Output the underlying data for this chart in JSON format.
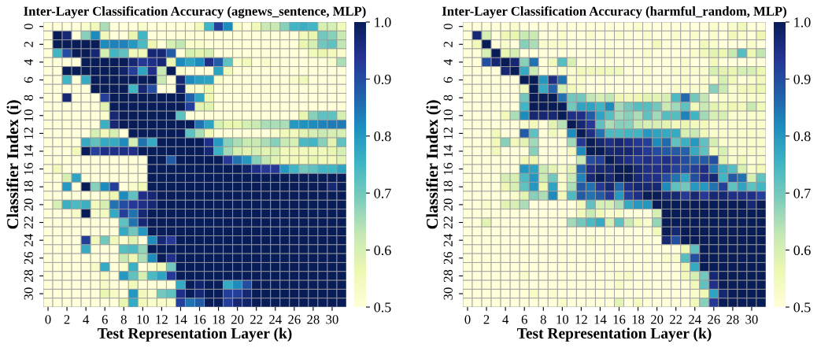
{
  "chart_data": [
    {
      "type": "heatmap",
      "title": "Inter-Layer Classification Accuracy (agnews_sentence, MLP)",
      "xlabel": "Test Representation Layer (k)",
      "ylabel": "Classifier Index (i)",
      "categories": [
        "0",
        null,
        "2",
        null,
        "4",
        null,
        "6",
        null,
        "8",
        null,
        "10",
        null,
        "12",
        null,
        "14",
        null,
        "16",
        null,
        "18",
        null,
        "20",
        null,
        "22",
        null,
        "24",
        null,
        "26",
        null,
        "28",
        null,
        "30",
        null
      ],
      "y_categories": [
        "0",
        null,
        "2",
        null,
        "4",
        null,
        "6",
        null,
        "8",
        null,
        "10",
        null,
        "12",
        null,
        "14",
        null,
        "16",
        null,
        "18",
        null,
        "20",
        null,
        "22",
        null,
        "24",
        null,
        "26",
        null,
        "28",
        null,
        "30",
        null
      ],
      "clim": [
        0.5,
        1.0
      ],
      "cticks": [
        0.5,
        0.6,
        0.7,
        0.8,
        0.9,
        {
          "value": 1,
          "label": "1.0"
        }
      ],
      "cells": [
        [
          0.5,
          0.5,
          0.5,
          0.5,
          0.52,
          0.55,
          0.65,
          0.5,
          0.5,
          0.5,
          0.52,
          0.5,
          0.5,
          0.5,
          0.5,
          0.5,
          0.55,
          0.75,
          0.92,
          0.82,
          0.52,
          0.5,
          0.55,
          0.62,
          0.62,
          0.68,
          0.75,
          0.76,
          0.75,
          0.6,
          0.6,
          0.55
        ],
        [
          0.5,
          1.0,
          0.97,
          0.5,
          0.68,
          0.82,
          0.55,
          0.5,
          0.5,
          0.57,
          0.75,
          0.5,
          0.5,
          0.5,
          0.5,
          0.5,
          0.5,
          0.5,
          0.5,
          0.5,
          0.5,
          0.5,
          0.5,
          0.5,
          0.5,
          0.5,
          0.5,
          0.55,
          0.57,
          0.7,
          0.68,
          0.62
        ],
        [
          0.5,
          1.0,
          1.0,
          1.0,
          1.0,
          1.0,
          0.82,
          0.83,
          0.83,
          0.8,
          0.74,
          0.56,
          0.5,
          0.6,
          0.63,
          0.52,
          0.52,
          0.5,
          0.5,
          0.5,
          0.5,
          0.5,
          0.5,
          0.5,
          0.5,
          0.5,
          0.5,
          0.57,
          0.6,
          0.7,
          0.72,
          0.63
        ],
        [
          0.5,
          0.75,
          0.9,
          1.0,
          1.0,
          0.97,
          0.6,
          0.75,
          0.72,
          0.55,
          0.55,
          0.97,
          0.97,
          0.88,
          0.5,
          0.6,
          0.58,
          0.6,
          0.5,
          0.5,
          0.5,
          0.5,
          0.5,
          0.5,
          0.5,
          0.5,
          0.5,
          0.5,
          0.55,
          0.57,
          0.55,
          0.52
        ],
        [
          0.5,
          0.5,
          0.5,
          0.5,
          1.0,
          1.0,
          1.0,
          1.0,
          1.0,
          0.97,
          0.93,
          0.95,
          0.97,
          0.57,
          0.82,
          0.78,
          0.82,
          0.95,
          0.88,
          0.72,
          0.52,
          0.55,
          0.5,
          0.52,
          0.5,
          0.5,
          0.5,
          0.5,
          0.5,
          0.5,
          0.52,
          0.65
        ],
        [
          0.5,
          0.5,
          1.0,
          1.0,
          1.0,
          1.0,
          1.0,
          1.0,
          0.98,
          0.92,
          0.78,
          0.95,
          0.62,
          1.0,
          0.52,
          0.5,
          0.5,
          0.5,
          0.78,
          0.55,
          0.5,
          0.5,
          0.5,
          0.5,
          0.5,
          0.5,
          0.5,
          0.5,
          0.5,
          0.5,
          0.5,
          0.5
        ],
        [
          0.5,
          0.5,
          0.75,
          0.5,
          0.77,
          1.0,
          1.0,
          1.0,
          1.0,
          1.0,
          1.0,
          1.0,
          0.62,
          0.5,
          0.97,
          0.82,
          0.79,
          0.78,
          0.52,
          0.5,
          0.5,
          0.5,
          0.5,
          0.5,
          0.5,
          0.5,
          0.52,
          0.55,
          0.5,
          0.5,
          0.5,
          0.5
        ],
        [
          0.5,
          0.5,
          0.5,
          0.5,
          0.5,
          1.0,
          1.0,
          1.0,
          1.0,
          0.75,
          0.97,
          0.9,
          0.5,
          0.5,
          0.98,
          0.52,
          0.52,
          0.56,
          0.5,
          0.5,
          0.5,
          0.5,
          0.5,
          0.5,
          0.5,
          0.5,
          0.5,
          0.5,
          0.5,
          0.5,
          0.5,
          0.5
        ],
        [
          0.5,
          0.5,
          0.97,
          0.5,
          0.5,
          0.5,
          0.92,
          1.0,
          1.0,
          1.0,
          1.0,
          1.0,
          1.0,
          1.0,
          1.0,
          0.87,
          0.78,
          0.56,
          0.5,
          0.5,
          0.5,
          0.5,
          0.5,
          0.5,
          0.5,
          0.5,
          0.5,
          0.5,
          0.5,
          0.5,
          0.5,
          0.5
        ],
        [
          0.5,
          0.5,
          0.5,
          0.5,
          0.5,
          0.5,
          0.58,
          1.0,
          1.0,
          1.0,
          1.0,
          1.0,
          1.0,
          1.0,
          1.0,
          0.92,
          0.58,
          0.58,
          0.5,
          0.5,
          0.5,
          0.5,
          0.5,
          0.5,
          0.5,
          0.5,
          0.5,
          0.5,
          0.5,
          0.5,
          0.5,
          0.5
        ],
        [
          0.5,
          0.5,
          0.5,
          0.5,
          0.5,
          0.5,
          0.52,
          0.97,
          1.0,
          1.0,
          1.0,
          1.0,
          1.0,
          1.0,
          0.72,
          0.5,
          0.5,
          0.5,
          0.5,
          0.5,
          0.5,
          0.5,
          0.5,
          0.5,
          0.5,
          0.5,
          0.5,
          0.57,
          0.68,
          0.72,
          0.72,
          0.6
        ],
        [
          0.5,
          0.5,
          0.5,
          0.5,
          0.5,
          0.5,
          0.76,
          0.97,
          1.0,
          1.0,
          1.0,
          1.0,
          1.0,
          1.0,
          1.0,
          1.0,
          0.85,
          0.78,
          0.6,
          0.57,
          0.57,
          0.6,
          0.62,
          0.65,
          0.65,
          0.65,
          0.8,
          0.81,
          0.82,
          0.83,
          0.84,
          0.84
        ],
        [
          0.5,
          0.5,
          0.5,
          0.5,
          0.5,
          0.6,
          0.55,
          0.6,
          0.5,
          1.0,
          1.0,
          1.0,
          1.0,
          1.0,
          1.0,
          0.72,
          0.65,
          0.55,
          0.5,
          0.5,
          0.5,
          0.5,
          0.5,
          0.5,
          0.52,
          0.55,
          0.55,
          0.58,
          0.6,
          0.62,
          0.6,
          0.6
        ],
        [
          0.5,
          0.5,
          0.5,
          0.5,
          0.77,
          0.72,
          0.77,
          0.77,
          0.82,
          0.6,
          0.85,
          0.77,
          1.0,
          1.0,
          1.0,
          1.0,
          1.0,
          0.95,
          0.8,
          0.68,
          0.65,
          0.62,
          0.62,
          0.65,
          0.68,
          0.62,
          0.6,
          0.74,
          0.75,
          0.68,
          0.58,
          0.72
        ],
        [
          0.5,
          0.5,
          0.5,
          0.55,
          1.0,
          0.92,
          0.95,
          0.95,
          0.95,
          0.95,
          1.0,
          1.0,
          1.0,
          1.0,
          1.0,
          1.0,
          1.0,
          0.97,
          0.76,
          0.66,
          0.6,
          0.58,
          0.6,
          0.58,
          0.6,
          0.55,
          0.55,
          0.55,
          0.55,
          0.55,
          0.57,
          0.6
        ],
        [
          0.5,
          0.5,
          0.5,
          0.5,
          0.5,
          0.5,
          0.5,
          0.5,
          0.5,
          0.5,
          0.5,
          1.0,
          1.0,
          0.88,
          1.0,
          1.0,
          1.0,
          1.0,
          1.0,
          0.93,
          0.85,
          0.8,
          0.68,
          0.63,
          0.58,
          0.55,
          0.55,
          0.55,
          0.57,
          0.55,
          0.55,
          0.58
        ],
        [
          0.5,
          0.55,
          0.5,
          0.5,
          0.5,
          0.5,
          0.5,
          0.5,
          0.5,
          0.5,
          0.5,
          1.0,
          1.0,
          1.0,
          1.0,
          1.0,
          1.0,
          1.0,
          1.0,
          1.0,
          1.0,
          0.98,
          0.95,
          0.93,
          0.93,
          0.8,
          0.75,
          0.7,
          0.72,
          0.75,
          0.75,
          0.78
        ],
        [
          0.5,
          0.5,
          0.6,
          0.78,
          0.5,
          0.5,
          0.5,
          0.5,
          0.5,
          0.5,
          0.5,
          1.0,
          1.0,
          1.0,
          1.0,
          1.0,
          1.0,
          1.0,
          1.0,
          1.0,
          1.0,
          1.0,
          1.0,
          1.0,
          1.0,
          1.0,
          1.0,
          1.0,
          1.0,
          1.0,
          1.0,
          1.0
        ],
        [
          0.5,
          0.5,
          0.8,
          0.5,
          1.0,
          0.68,
          0.82,
          0.92,
          0.5,
          0.52,
          0.55,
          1.0,
          1.0,
          1.0,
          1.0,
          1.0,
          1.0,
          1.0,
          1.0,
          1.0,
          1.0,
          1.0,
          1.0,
          1.0,
          1.0,
          1.0,
          1.0,
          1.0,
          1.0,
          1.0,
          0.97,
          1.0
        ],
        [
          0.5,
          0.5,
          0.5,
          0.5,
          0.5,
          0.5,
          0.52,
          0.56,
          0.82,
          0.72,
          0.95,
          0.97,
          1.0,
          1.0,
          1.0,
          1.0,
          1.0,
          1.0,
          1.0,
          1.0,
          1.0,
          1.0,
          1.0,
          1.0,
          1.0,
          1.0,
          1.0,
          1.0,
          1.0,
          1.0,
          1.0,
          1.0
        ],
        [
          0.5,
          0.6,
          0.76,
          0.74,
          0.76,
          0.55,
          0.6,
          0.85,
          0.9,
          0.93,
          0.95,
          0.97,
          1.0,
          1.0,
          1.0,
          1.0,
          1.0,
          1.0,
          1.0,
          1.0,
          1.0,
          1.0,
          1.0,
          1.0,
          1.0,
          1.0,
          1.0,
          1.0,
          1.0,
          1.0,
          1.0,
          1.0
        ],
        [
          0.5,
          0.5,
          0.5,
          0.53,
          1.0,
          0.52,
          0.54,
          0.77,
          0.92,
          0.85,
          0.97,
          1.0,
          1.0,
          1.0,
          1.0,
          1.0,
          1.0,
          1.0,
          1.0,
          1.0,
          1.0,
          1.0,
          1.0,
          1.0,
          1.0,
          1.0,
          1.0,
          1.0,
          1.0,
          1.0,
          1.0,
          1.0
        ],
        [
          0.5,
          0.5,
          0.5,
          0.5,
          0.5,
          0.5,
          0.5,
          0.5,
          0.72,
          0.85,
          0.97,
          1.0,
          1.0,
          1.0,
          1.0,
          1.0,
          1.0,
          1.0,
          1.0,
          1.0,
          1.0,
          1.0,
          1.0,
          1.0,
          1.0,
          1.0,
          1.0,
          1.0,
          1.0,
          1.0,
          1.0,
          1.0
        ],
        [
          0.5,
          0.5,
          0.5,
          0.5,
          0.5,
          0.5,
          0.5,
          0.5,
          0.77,
          0.7,
          0.8,
          1.0,
          1.0,
          1.0,
          1.0,
          1.0,
          1.0,
          1.0,
          1.0,
          1.0,
          1.0,
          1.0,
          1.0,
          1.0,
          1.0,
          1.0,
          1.0,
          1.0,
          1.0,
          1.0,
          1.0,
          1.0
        ],
        [
          0.5,
          0.5,
          0.5,
          0.5,
          0.92,
          0.55,
          0.7,
          0.55,
          0.52,
          0.58,
          0.5,
          0.82,
          0.97,
          0.93,
          1.0,
          1.0,
          1.0,
          1.0,
          1.0,
          1.0,
          1.0,
          1.0,
          1.0,
          1.0,
          1.0,
          1.0,
          1.0,
          1.0,
          1.0,
          1.0,
          1.0,
          1.0
        ],
        [
          0.5,
          0.5,
          0.5,
          0.5,
          0.77,
          0.5,
          0.5,
          0.5,
          0.73,
          0.74,
          0.67,
          1.0,
          1.0,
          1.0,
          1.0,
          1.0,
          1.0,
          1.0,
          1.0,
          1.0,
          1.0,
          1.0,
          1.0,
          1.0,
          1.0,
          1.0,
          1.0,
          1.0,
          1.0,
          1.0,
          1.0,
          1.0
        ],
        [
          0.5,
          0.5,
          0.5,
          0.5,
          0.5,
          0.5,
          0.5,
          0.5,
          0.62,
          0.56,
          0.65,
          0.82,
          1.0,
          0.95,
          1.0,
          1.0,
          1.0,
          1.0,
          1.0,
          1.0,
          1.0,
          1.0,
          1.0,
          1.0,
          1.0,
          1.0,
          1.0,
          1.0,
          1.0,
          1.0,
          1.0,
          1.0
        ],
        [
          0.5,
          0.5,
          0.5,
          0.5,
          0.5,
          0.53,
          0.77,
          0.5,
          0.52,
          0.76,
          0.5,
          0.52,
          0.55,
          0.7,
          1.0,
          1.0,
          1.0,
          1.0,
          1.0,
          1.0,
          1.0,
          1.0,
          1.0,
          1.0,
          1.0,
          1.0,
          1.0,
          1.0,
          1.0,
          1.0,
          1.0,
          1.0
        ],
        [
          0.5,
          0.5,
          0.5,
          0.5,
          0.5,
          0.5,
          0.53,
          0.5,
          0.8,
          0.72,
          0.6,
          0.74,
          0.78,
          0.93,
          1.0,
          1.0,
          1.0,
          1.0,
          1.0,
          1.0,
          1.0,
          1.0,
          1.0,
          1.0,
          1.0,
          1.0,
          1.0,
          1.0,
          1.0,
          1.0,
          1.0,
          1.0
        ],
        [
          0.5,
          0.5,
          0.5,
          0.5,
          0.5,
          0.5,
          0.53,
          0.5,
          0.5,
          0.55,
          0.5,
          0.5,
          0.5,
          0.5,
          0.77,
          1.0,
          0.98,
          1.0,
          1.0,
          0.77,
          0.82,
          0.9,
          1.0,
          1.0,
          1.0,
          1.0,
          1.0,
          1.0,
          1.0,
          1.0,
          1.0,
          1.0
        ],
        [
          0.5,
          0.5,
          0.5,
          0.5,
          0.5,
          0.5,
          0.57,
          0.53,
          0.5,
          0.8,
          0.55,
          0.52,
          0.7,
          0.72,
          0.95,
          1.0,
          0.97,
          1.0,
          1.0,
          0.92,
          0.92,
          0.97,
          1.0,
          1.0,
          1.0,
          1.0,
          1.0,
          1.0,
          1.0,
          1.0,
          1.0,
          1.0
        ],
        [
          0.5,
          0.5,
          0.5,
          0.5,
          0.5,
          0.5,
          0.5,
          0.5,
          0.57,
          0.77,
          0.55,
          0.52,
          0.52,
          0.52,
          0.92,
          0.85,
          0.88,
          1.0,
          1.0,
          0.92,
          0.97,
          0.98,
          1.0,
          1.0,
          1.0,
          1.0,
          1.0,
          1.0,
          1.0,
          1.0,
          1.0,
          1.0
        ]
      ]
    },
    {
      "type": "heatmap",
      "title": "Inter-Layer Classification Accuracy (harmful_random, MLP)",
      "xlabel": "Test Representation Layer (k)",
      "ylabel": "Classifier Index (i)",
      "categories": [
        "0",
        null,
        "2",
        null,
        "4",
        null,
        "6",
        null,
        "8",
        null,
        "10",
        null,
        "12",
        null,
        "14",
        null,
        "16",
        null,
        "18",
        null,
        "20",
        null,
        "22",
        null,
        "24",
        null,
        "26",
        null,
        "28",
        null,
        "30",
        null
      ],
      "y_categories": [
        "0",
        null,
        "2",
        null,
        "4",
        null,
        "6",
        null,
        "8",
        null,
        "10",
        null,
        "12",
        null,
        "14",
        null,
        "16",
        null,
        "18",
        null,
        "20",
        null,
        "22",
        null,
        "24",
        null,
        "26",
        null,
        "28",
        null,
        "30",
        null
      ],
      "clim": [
        0.5,
        1.0
      ],
      "cticks": [
        0.5,
        0.6,
        0.7,
        0.8,
        0.9,
        {
          "value": 1,
          "label": "1.0"
        }
      ],
      "cells": [
        [
          0.5,
          0.5,
          0.5,
          0.5,
          0.5,
          0.52,
          0.5,
          0.5,
          0.5,
          0.5,
          0.5,
          0.5,
          0.5,
          0.5,
          0.5,
          0.5,
          0.5,
          0.5,
          0.52,
          0.5,
          0.5,
          0.5,
          0.5,
          0.5,
          0.5,
          0.5,
          0.52,
          0.5,
          0.52,
          0.55,
          0.5,
          0.5
        ],
        [
          0.5,
          0.97,
          0.6,
          0.5,
          0.56,
          0.57,
          0.62,
          0.62,
          0.5,
          0.5,
          0.52,
          0.5,
          0.5,
          0.52,
          0.5,
          0.5,
          0.52,
          0.5,
          0.5,
          0.52,
          0.5,
          0.5,
          0.52,
          0.5,
          0.52,
          0.5,
          0.52,
          0.5,
          0.55,
          0.52,
          0.5,
          0.56
        ],
        [
          0.5,
          0.55,
          1.0,
          0.5,
          0.52,
          0.5,
          0.68,
          0.65,
          0.52,
          0.52,
          0.52,
          0.5,
          0.5,
          0.5,
          0.5,
          0.5,
          0.5,
          0.5,
          0.5,
          0.5,
          0.55,
          0.5,
          0.5,
          0.5,
          0.5,
          0.55,
          0.52,
          0.5,
          0.5,
          0.5,
          0.52,
          0.5
        ],
        [
          0.5,
          0.5,
          0.6,
          1.0,
          0.57,
          0.6,
          0.5,
          0.5,
          0.5,
          0.5,
          0.5,
          0.5,
          0.5,
          0.5,
          0.52,
          0.52,
          0.5,
          0.5,
          0.5,
          0.52,
          0.5,
          0.5,
          0.5,
          0.5,
          0.52,
          0.55,
          0.58,
          0.56,
          0.62,
          0.73,
          0.56,
          0.63
        ],
        [
          0.5,
          0.5,
          0.9,
          0.97,
          1.0,
          0.97,
          0.68,
          0.85,
          0.5,
          0.55,
          0.73,
          0.6,
          0.5,
          0.5,
          0.5,
          0.5,
          0.5,
          0.5,
          0.5,
          0.5,
          0.5,
          0.5,
          0.5,
          0.52,
          0.5,
          0.5,
          0.55,
          0.5,
          0.5,
          0.5,
          0.5,
          0.5
        ],
        [
          0.5,
          0.5,
          0.5,
          0.5,
          0.97,
          1.0,
          0.77,
          0.62,
          0.5,
          0.5,
          0.52,
          0.52,
          0.55,
          0.55,
          0.55,
          0.55,
          0.55,
          0.5,
          0.5,
          0.52,
          0.5,
          0.5,
          0.52,
          0.52,
          0.52,
          0.52,
          0.6,
          0.58,
          0.57,
          0.6,
          0.6,
          0.56
        ],
        [
          0.5,
          0.5,
          0.5,
          0.5,
          0.5,
          0.5,
          1.0,
          1.0,
          0.8,
          0.95,
          0.85,
          0.52,
          0.52,
          0.5,
          0.5,
          0.5,
          0.5,
          0.5,
          0.5,
          0.5,
          0.5,
          0.5,
          0.5,
          0.52,
          0.5,
          0.52,
          0.52,
          0.6,
          0.55,
          0.5,
          0.52,
          0.55
        ],
        [
          0.5,
          0.5,
          0.5,
          0.5,
          0.5,
          0.5,
          0.55,
          1.0,
          0.77,
          0.87,
          0.6,
          0.55,
          0.52,
          0.5,
          0.5,
          0.5,
          0.5,
          0.5,
          0.5,
          0.5,
          0.5,
          0.5,
          0.52,
          0.52,
          0.52,
          0.52,
          0.68,
          0.62,
          0.52,
          0.55,
          0.55,
          0.56
        ],
        [
          0.5,
          0.5,
          0.5,
          0.5,
          0.5,
          0.5,
          0.7,
          1.0,
          1.0,
          1.0,
          0.85,
          0.7,
          0.7,
          0.63,
          0.6,
          0.63,
          0.56,
          0.55,
          0.56,
          0.58,
          0.58,
          0.6,
          0.74,
          0.86,
          0.7,
          0.63,
          0.5,
          0.52,
          0.52,
          0.52,
          0.52,
          0.52
        ],
        [
          0.5,
          0.5,
          0.5,
          0.5,
          0.5,
          0.5,
          0.75,
          1.0,
          1.0,
          1.0,
          1.0,
          0.7,
          0.78,
          0.78,
          0.75,
          0.82,
          0.66,
          0.7,
          0.73,
          0.73,
          0.7,
          0.62,
          0.66,
          0.72,
          0.55,
          0.62,
          0.58,
          0.55,
          0.56,
          0.55,
          0.62,
          0.55
        ],
        [
          0.5,
          0.5,
          0.5,
          0.5,
          0.55,
          0.65,
          0.82,
          0.97,
          0.97,
          0.97,
          1.0,
          0.95,
          0.95,
          0.88,
          0.78,
          0.73,
          0.66,
          0.68,
          0.65,
          0.72,
          0.66,
          0.73,
          0.73,
          0.83,
          0.75,
          0.66,
          0.6,
          0.6,
          0.52,
          0.52,
          0.52,
          0.52
        ],
        [
          0.5,
          0.5,
          0.5,
          0.5,
          0.5,
          0.5,
          0.52,
          0.55,
          0.5,
          0.58,
          0.64,
          1.0,
          0.97,
          0.93,
          0.72,
          0.65,
          0.68,
          0.68,
          0.62,
          0.6,
          0.6,
          0.58,
          0.55,
          0.57,
          0.55,
          0.55,
          0.52,
          0.52,
          0.52,
          0.52,
          0.52,
          0.52
        ],
        [
          0.5,
          0.5,
          0.5,
          0.55,
          0.5,
          0.5,
          0.88,
          0.72,
          0.5,
          0.55,
          0.52,
          0.82,
          1.0,
          0.95,
          0.85,
          0.74,
          0.74,
          0.75,
          0.75,
          0.8,
          0.78,
          0.77,
          0.77,
          0.6,
          0.62,
          0.55,
          0.52,
          0.52,
          0.52,
          0.52,
          0.52,
          0.52
        ],
        [
          0.5,
          0.5,
          0.5,
          0.55,
          0.68,
          0.55,
          0.58,
          0.66,
          0.5,
          0.5,
          0.5,
          0.66,
          0.93,
          1.0,
          0.97,
          0.95,
          0.97,
          0.95,
          0.93,
          0.92,
          0.82,
          0.86,
          0.72,
          0.76,
          0.8,
          0.72,
          0.6,
          0.52,
          0.52,
          0.52,
          0.52,
          0.52
        ],
        [
          0.5,
          0.5,
          0.5,
          0.55,
          0.5,
          0.5,
          0.5,
          0.68,
          0.5,
          0.5,
          0.5,
          0.55,
          0.82,
          1.0,
          1.0,
          0.97,
          0.97,
          0.97,
          0.95,
          0.93,
          0.9,
          0.88,
          0.88,
          0.87,
          0.77,
          0.72,
          0.55,
          0.6,
          0.52,
          0.52,
          0.52,
          0.52
        ],
        [
          0.5,
          0.5,
          0.5,
          0.5,
          0.5,
          0.5,
          0.55,
          0.56,
          0.5,
          0.5,
          0.5,
          0.5,
          0.62,
          0.9,
          0.92,
          1.0,
          0.97,
          0.95,
          0.93,
          0.95,
          0.93,
          0.95,
          0.93,
          0.9,
          0.87,
          0.88,
          0.9,
          0.58,
          0.52,
          0.55,
          0.5,
          0.52
        ],
        [
          0.5,
          0.5,
          0.5,
          0.5,
          0.5,
          0.5,
          0.8,
          0.78,
          0.62,
          0.58,
          0.52,
          0.58,
          0.86,
          0.95,
          0.97,
          0.97,
          1.0,
          1.0,
          0.97,
          0.95,
          0.95,
          0.95,
          0.92,
          0.9,
          0.92,
          0.95,
          0.85,
          0.76,
          0.73,
          0.6,
          0.52,
          0.55
        ],
        [
          0.5,
          0.5,
          0.5,
          0.5,
          0.6,
          0.6,
          0.74,
          0.8,
          0.62,
          0.7,
          0.52,
          0.62,
          0.83,
          0.97,
          1.0,
          0.97,
          1.0,
          1.0,
          0.97,
          0.95,
          0.95,
          0.9,
          0.85,
          0.78,
          0.9,
          0.95,
          0.97,
          0.75,
          0.88,
          0.85,
          0.6,
          0.72
        ],
        [
          0.5,
          0.5,
          0.5,
          0.5,
          0.56,
          0.6,
          0.72,
          0.8,
          0.56,
          0.78,
          0.52,
          0.65,
          0.88,
          0.85,
          0.93,
          0.97,
          0.86,
          0.95,
          0.97,
          0.97,
          0.97,
          0.82,
          0.72,
          0.7,
          0.8,
          0.8,
          0.85,
          0.92,
          0.72,
          0.78,
          0.72,
          0.75
        ],
        [
          0.5,
          0.5,
          0.5,
          0.5,
          0.5,
          0.52,
          0.58,
          0.68,
          0.65,
          0.82,
          0.55,
          0.74,
          0.88,
          0.85,
          0.88,
          0.93,
          0.8,
          0.92,
          0.95,
          1.0,
          1.0,
          0.97,
          0.97,
          0.93,
          0.97,
          0.93,
          0.97,
          0.97,
          0.95,
          0.95,
          0.95,
          0.92
        ],
        [
          0.5,
          0.5,
          0.52,
          0.5,
          0.58,
          0.6,
          0.65,
          0.5,
          0.5,
          0.5,
          0.5,
          0.5,
          0.55,
          0.72,
          0.6,
          0.6,
          0.65,
          0.77,
          0.8,
          0.8,
          1.0,
          1.0,
          1.0,
          1.0,
          1.0,
          1.0,
          1.0,
          1.0,
          1.0,
          1.0,
          0.97,
          1.0
        ],
        [
          0.5,
          0.5,
          0.5,
          0.5,
          0.5,
          0.5,
          0.5,
          0.5,
          0.5,
          0.5,
          0.5,
          0.5,
          0.55,
          0.62,
          0.55,
          0.52,
          0.53,
          0.5,
          0.5,
          0.5,
          0.6,
          1.0,
          1.0,
          1.0,
          1.0,
          1.0,
          1.0,
          1.0,
          1.0,
          1.0,
          1.0,
          1.0
        ],
        [
          0.5,
          0.5,
          0.58,
          0.5,
          0.5,
          0.5,
          0.5,
          0.5,
          0.5,
          0.5,
          0.5,
          0.66,
          0.7,
          0.74,
          0.77,
          0.6,
          0.72,
          0.62,
          0.55,
          0.52,
          0.67,
          1.0,
          1.0,
          1.0,
          1.0,
          1.0,
          1.0,
          1.0,
          1.0,
          1.0,
          1.0,
          1.0
        ],
        [
          0.5,
          0.5,
          0.5,
          0.5,
          0.5,
          0.5,
          0.5,
          0.5,
          0.5,
          0.5,
          0.5,
          0.5,
          0.5,
          0.5,
          0.5,
          0.5,
          0.5,
          0.5,
          0.5,
          0.5,
          0.55,
          1.0,
          0.97,
          1.0,
          1.0,
          1.0,
          1.0,
          1.0,
          1.0,
          1.0,
          1.0,
          1.0
        ],
        [
          0.5,
          0.5,
          0.5,
          0.5,
          0.5,
          0.5,
          0.5,
          0.5,
          0.5,
          0.5,
          0.5,
          0.5,
          0.5,
          0.52,
          0.5,
          0.5,
          0.5,
          0.5,
          0.5,
          0.5,
          0.5,
          0.97,
          0.9,
          1.0,
          1.0,
          1.0,
          1.0,
          1.0,
          1.0,
          1.0,
          1.0,
          1.0
        ],
        [
          0.5,
          0.5,
          0.5,
          0.5,
          0.5,
          0.5,
          0.5,
          0.5,
          0.5,
          0.5,
          0.5,
          0.5,
          0.5,
          0.5,
          0.5,
          0.5,
          0.5,
          0.5,
          0.5,
          0.5,
          0.5,
          0.5,
          0.5,
          0.56,
          0.72,
          1.0,
          1.0,
          1.0,
          1.0,
          1.0,
          1.0,
          1.0
        ],
        [
          0.5,
          0.5,
          0.5,
          0.5,
          0.5,
          0.5,
          0.5,
          0.5,
          0.5,
          0.5,
          0.5,
          0.5,
          0.5,
          0.5,
          0.5,
          0.5,
          0.5,
          0.5,
          0.5,
          0.5,
          0.5,
          0.52,
          0.52,
          0.73,
          0.9,
          1.0,
          1.0,
          1.0,
          1.0,
          1.0,
          1.0,
          1.0
        ],
        [
          0.5,
          0.5,
          0.5,
          0.5,
          0.5,
          0.5,
          0.5,
          0.5,
          0.5,
          0.5,
          0.5,
          0.5,
          0.5,
          0.5,
          0.5,
          0.5,
          0.5,
          0.5,
          0.5,
          0.5,
          0.5,
          0.5,
          0.5,
          0.56,
          0.77,
          1.0,
          1.0,
          1.0,
          1.0,
          1.0,
          1.0,
          1.0
        ],
        [
          0.5,
          0.5,
          0.5,
          0.5,
          0.5,
          0.5,
          0.52,
          0.5,
          0.5,
          0.5,
          0.5,
          0.5,
          0.5,
          0.5,
          0.5,
          0.5,
          0.52,
          0.53,
          0.5,
          0.5,
          0.5,
          0.5,
          0.5,
          0.55,
          0.6,
          0.7,
          0.97,
          1.0,
          1.0,
          1.0,
          1.0,
          1.0
        ],
        [
          0.5,
          0.5,
          0.5,
          0.5,
          0.5,
          0.5,
          0.5,
          0.5,
          0.5,
          0.5,
          0.5,
          0.5,
          0.5,
          0.5,
          0.5,
          0.5,
          0.53,
          0.5,
          0.5,
          0.5,
          0.5,
          0.5,
          0.5,
          0.5,
          0.55,
          0.72,
          0.95,
          1.0,
          1.0,
          1.0,
          1.0,
          1.0
        ],
        [
          0.5,
          0.5,
          0.5,
          0.5,
          0.5,
          0.5,
          0.5,
          0.53,
          0.5,
          0.52,
          0.5,
          0.5,
          0.5,
          0.5,
          0.5,
          0.5,
          0.5,
          0.5,
          0.5,
          0.5,
          0.5,
          0.5,
          0.5,
          0.5,
          0.52,
          0.56,
          0.78,
          0.97,
          1.0,
          1.0,
          1.0,
          1.0
        ],
        [
          0.5,
          0.5,
          0.5,
          0.5,
          0.5,
          0.5,
          0.5,
          0.5,
          0.5,
          0.5,
          0.52,
          0.5,
          0.5,
          0.5,
          0.5,
          0.5,
          0.58,
          0.5,
          0.54,
          0.5,
          0.5,
          0.5,
          0.5,
          0.5,
          0.55,
          0.68,
          0.93,
          1.0,
          1.0,
          1.0,
          1.0,
          1.0
        ]
      ]
    }
  ]
}
